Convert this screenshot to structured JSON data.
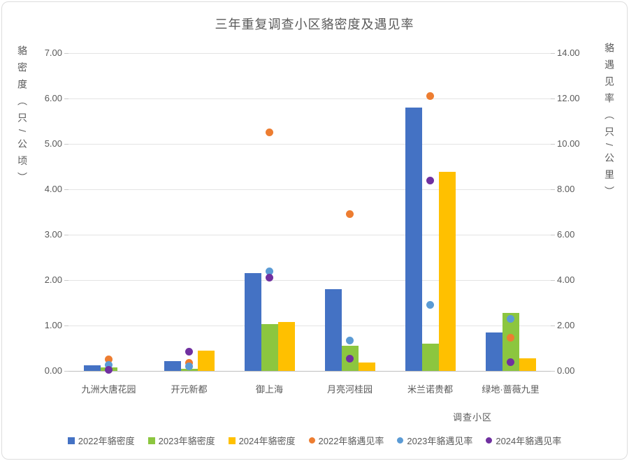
{
  "chart_data": {
    "type": "bar",
    "overlay": "scatter",
    "title": "三年重复调查小区貉密度及遇见率",
    "categories": [
      "九洲大唐花园",
      "开元新都",
      "御上海",
      "月亮河桂园",
      "米兰诺贵都",
      "绿地·蔷薇九里"
    ],
    "series": [
      {
        "name": "2022年貉密度",
        "kind": "bar",
        "axis": "left",
        "color": "#4472C4",
        "values": [
          0.13,
          0.22,
          2.15,
          1.8,
          5.8,
          0.85
        ]
      },
      {
        "name": "2023年貉密度",
        "kind": "bar",
        "axis": "left",
        "color": "#8CC63F",
        "values": [
          0.07,
          0.05,
          1.03,
          0.55,
          0.6,
          1.28
        ]
      },
      {
        "name": "2024年貉密度",
        "kind": "bar",
        "axis": "left",
        "color": "#FFC000",
        "values": [
          0.0,
          0.45,
          1.07,
          0.18,
          4.38,
          0.27
        ]
      },
      {
        "name": "2022年貉遇见率",
        "kind": "scatter",
        "axis": "right",
        "color": "#ED7D31",
        "values": [
          0.5,
          0.35,
          10.5,
          6.9,
          12.1,
          1.45
        ]
      },
      {
        "name": "2023年貉遇见率",
        "kind": "scatter",
        "axis": "right",
        "color": "#5B9BD5",
        "values": [
          0.25,
          0.2,
          4.4,
          1.35,
          2.9,
          2.3
        ]
      },
      {
        "name": "2024年貉遇见率",
        "kind": "scatter",
        "axis": "right",
        "color": "#7030A0",
        "values": [
          0.05,
          0.85,
          4.1,
          0.55,
          8.4,
          0.4
        ]
      }
    ],
    "left_axis": {
      "label": "貉密度（只/公顷）",
      "min": 0,
      "max": 7,
      "ticks": [
        "7.00",
        "6.00",
        "5.00",
        "4.00",
        "3.00",
        "2.00",
        "1.00",
        "0.00"
      ]
    },
    "right_axis": {
      "label": "貉遇见率（只/公里）",
      "min": 0,
      "max": 14,
      "ticks": [
        "14.00",
        "12.00",
        "10.00",
        "8.00",
        "6.00",
        "4.00",
        "2.00",
        "0.00"
      ]
    },
    "x_axis": {
      "title": "调查小区"
    },
    "grid": true,
    "legend_position": "bottom",
    "text_color": "#595959",
    "gridline_color": "#e4e4e4"
  }
}
